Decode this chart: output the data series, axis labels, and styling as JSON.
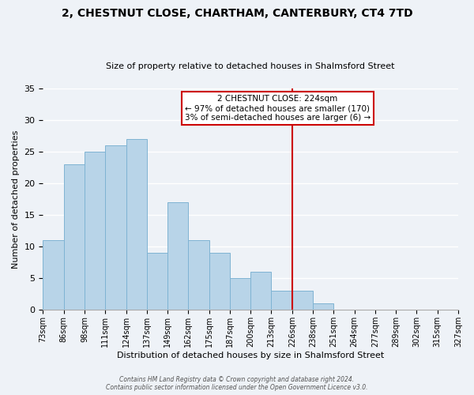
{
  "title": "2, CHESTNUT CLOSE, CHARTHAM, CANTERBURY, CT4 7TD",
  "subtitle": "Size of property relative to detached houses in Shalmsford Street",
  "xlabel": "Distribution of detached houses by size in Shalmsford Street",
  "ylabel": "Number of detached properties",
  "bin_labels": [
    "73sqm",
    "86sqm",
    "98sqm",
    "111sqm",
    "124sqm",
    "137sqm",
    "149sqm",
    "162sqm",
    "175sqm",
    "187sqm",
    "200sqm",
    "213sqm",
    "226sqm",
    "238sqm",
    "251sqm",
    "264sqm",
    "277sqm",
    "289sqm",
    "302sqm",
    "315sqm",
    "327sqm"
  ],
  "bar_values": [
    11,
    23,
    25,
    26,
    27,
    9,
    17,
    11,
    9,
    5,
    6,
    3,
    3,
    1,
    0,
    0,
    0,
    0,
    0,
    0
  ],
  "bar_color": "#b8d4e8",
  "bar_edge_color": "#7fb3d3",
  "vline_color": "#cc0000",
  "vline_x": 12.0,
  "ylim": [
    0,
    35
  ],
  "yticks": [
    0,
    5,
    10,
    15,
    20,
    25,
    30,
    35
  ],
  "annotation_title": "2 CHESTNUT CLOSE: 224sqm",
  "annotation_line1": "← 97% of detached houses are smaller (170)",
  "annotation_line2": "3% of semi-detached houses are larger (6) →",
  "annotation_box_color": "#ffffff",
  "annotation_box_edge": "#cc0000",
  "footer_line1": "Contains HM Land Registry data © Crown copyright and database right 2024.",
  "footer_line2": "Contains public sector information licensed under the Open Government Licence v3.0.",
  "background_color": "#eef2f7",
  "grid_color": "#ffffff",
  "title_fontsize": 10,
  "subtitle_fontsize": 8,
  "tick_fontsize": 7,
  "ylabel_fontsize": 8,
  "xlabel_fontsize": 8
}
